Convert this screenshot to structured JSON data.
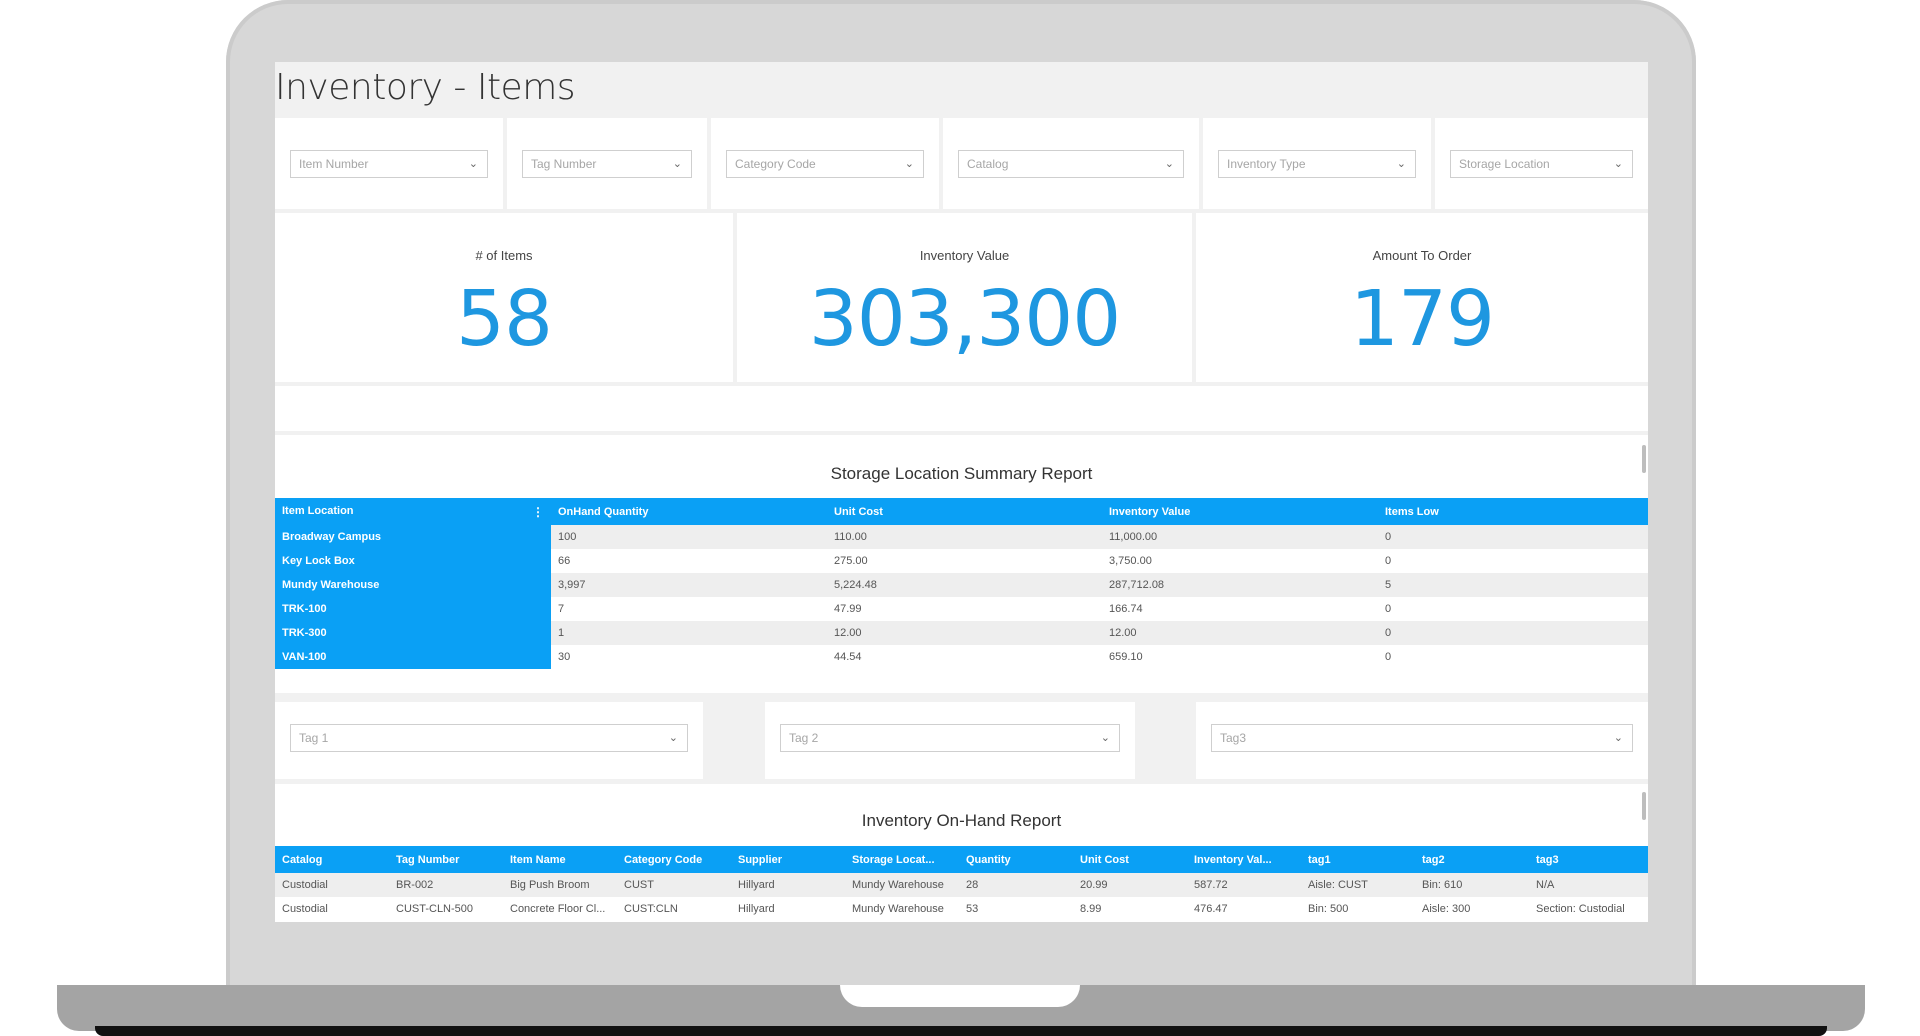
{
  "page": {
    "title": "Inventory - Items"
  },
  "filters": [
    {
      "placeholder": "Item Number"
    },
    {
      "placeholder": "Tag Number"
    },
    {
      "placeholder": "Category Code"
    },
    {
      "placeholder": "Catalog"
    },
    {
      "placeholder": "Inventory Type"
    },
    {
      "placeholder": "Storage Location"
    }
  ],
  "kpis": [
    {
      "label": "# of Items",
      "value": "58"
    },
    {
      "label": "Inventory Value",
      "value": "303,300"
    },
    {
      "label": "Amount To Order",
      "value": "179"
    }
  ],
  "storage_report": {
    "title": "Storage Location Summary Report",
    "columns": [
      "Item Location",
      "OnHand Quantity",
      "Unit Cost",
      "Inventory Value",
      "Items Low"
    ],
    "rows": [
      [
        "Broadway Campus",
        "100",
        "110.00",
        "11,000.00",
        "0"
      ],
      [
        "Key Lock Box",
        "66",
        "275.00",
        "3,750.00",
        "0"
      ],
      [
        "Mundy Warehouse",
        "3,997",
        "5,224.48",
        "287,712.08",
        "5"
      ],
      [
        "TRK-100",
        "7",
        "47.99",
        "166.74",
        "0"
      ],
      [
        "TRK-300",
        "1",
        "12.00",
        "12.00",
        "0"
      ],
      [
        "VAN-100",
        "30",
        "44.54",
        "659.10",
        "0"
      ]
    ]
  },
  "tag_filters": [
    {
      "placeholder": "Tag 1"
    },
    {
      "placeholder": "Tag 2"
    },
    {
      "placeholder": "Tag3"
    }
  ],
  "onhand_report": {
    "title": "Inventory On-Hand Report",
    "columns": [
      "Catalog",
      "Tag Number",
      "Item Name",
      "Category Code",
      "Supplier",
      "Storage Locat...",
      "Quantity",
      "Unit Cost",
      "Inventory Val...",
      "tag1",
      "tag2",
      "tag3"
    ],
    "rows": [
      [
        "Custodial",
        "BR-002",
        "Big Push Broom",
        "CUST",
        "Hillyard",
        "Mundy Warehouse",
        "28",
        "20.99",
        "587.72",
        "Aisle: CUST",
        "Bin: 610",
        "N/A"
      ],
      [
        "Custodial",
        "CUST-CLN-500",
        "Concrete Floor Cl...",
        "CUST:CLN",
        "Hillyard",
        "Mundy Warehouse",
        "53",
        "8.99",
        "476.47",
        "Bin: 500",
        "Aisle: 300",
        "Section: Custodial"
      ]
    ]
  },
  "colors": {
    "accent": "#0aa0f5",
    "kpi_value": "#1e97e0"
  },
  "icons": {
    "dropdown": "chevron-down-icon",
    "column_menu": "more-vertical-icon"
  }
}
